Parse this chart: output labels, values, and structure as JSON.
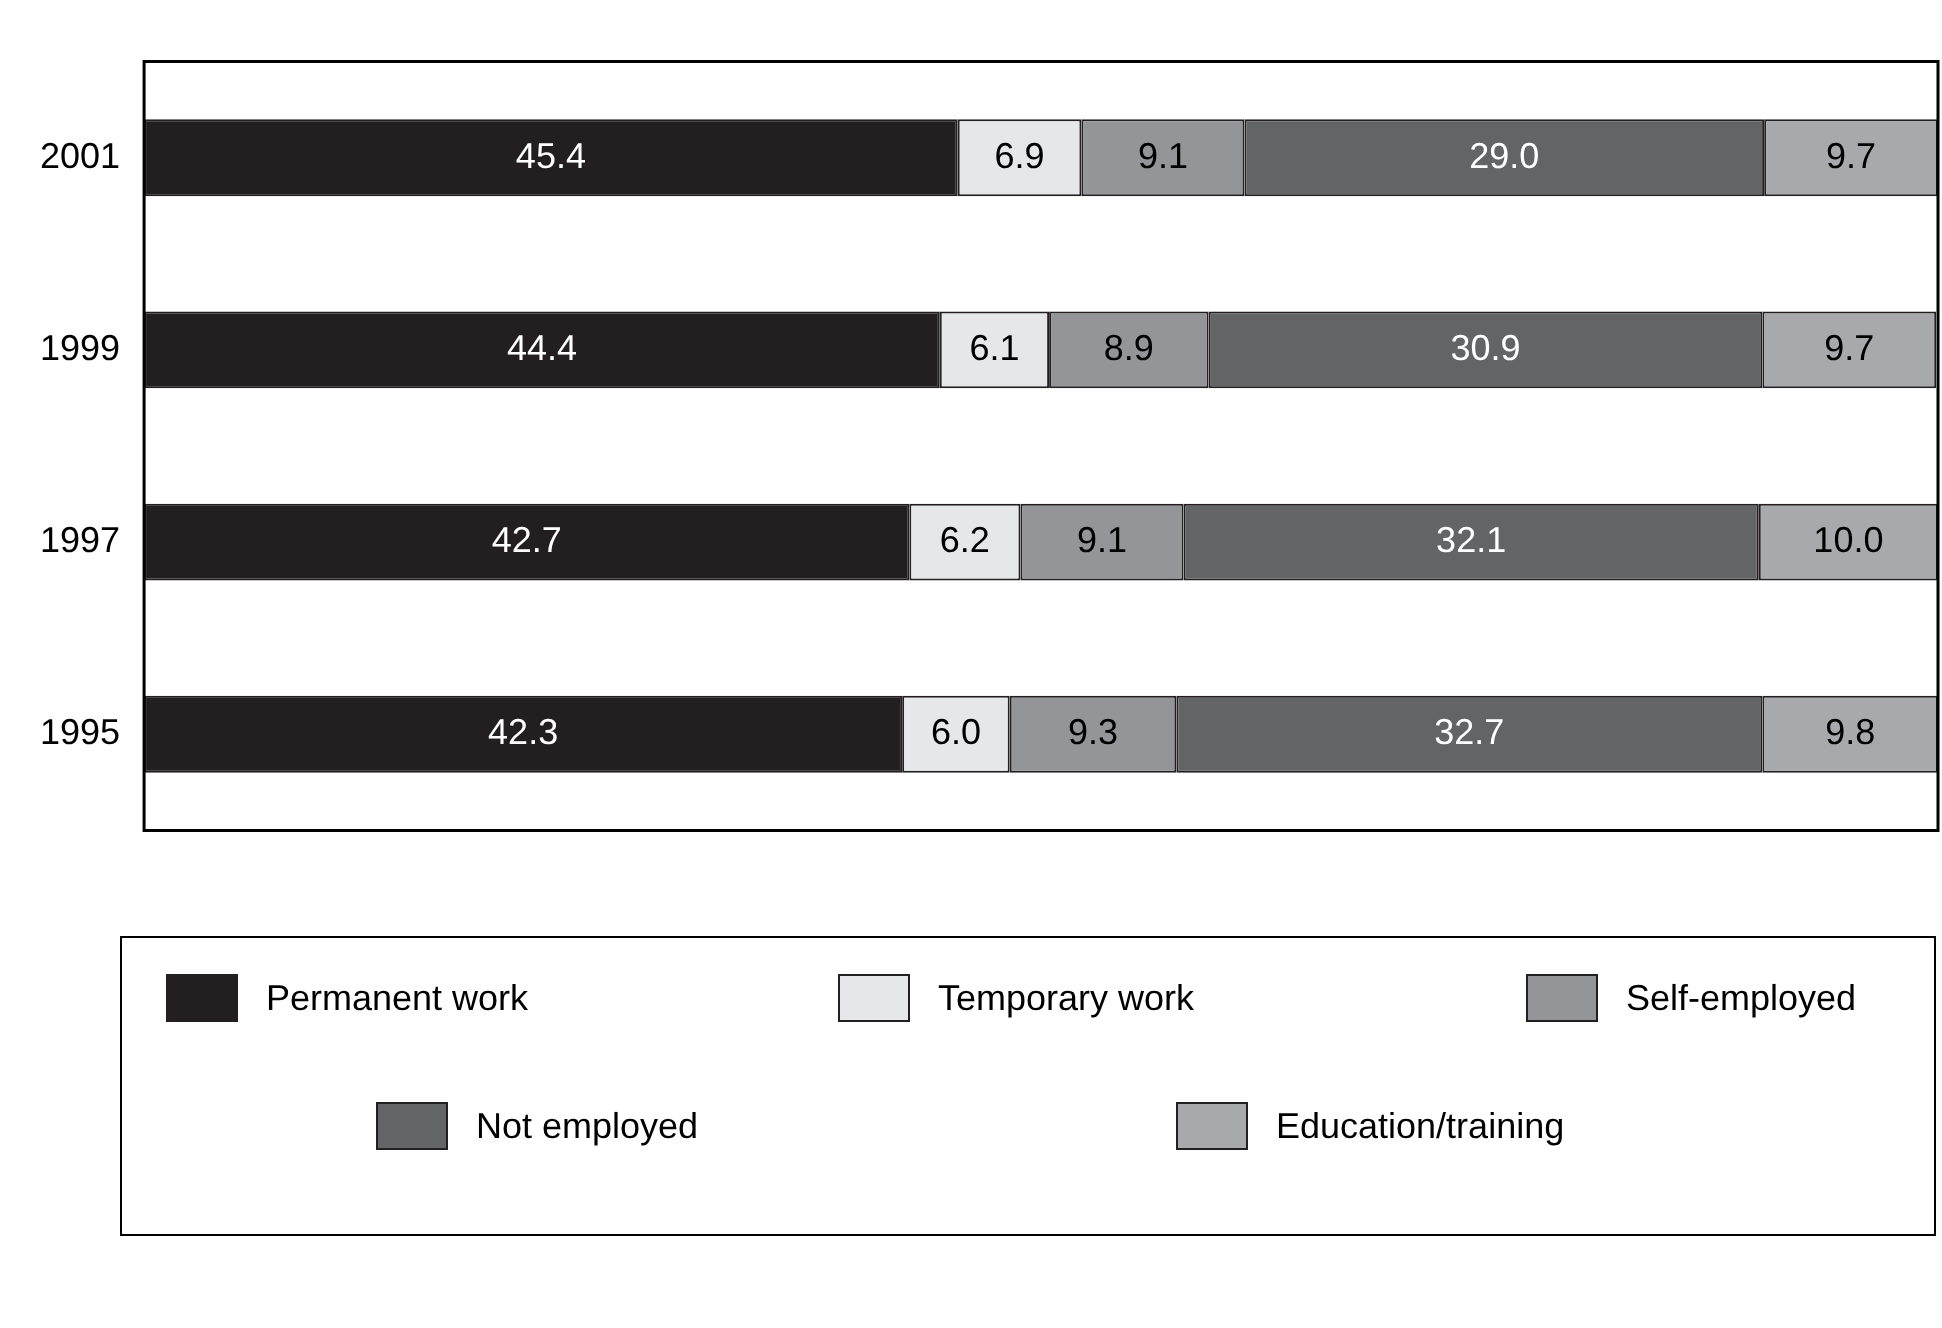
{
  "chart_data": {
    "type": "bar",
    "orientation": "horizontal",
    "stacked": true,
    "tick_labels": "y",
    "grid": false,
    "legend": "bottom",
    "categories": [
      "2001",
      "1999",
      "1997",
      "1995"
    ],
    "series": [
      {
        "name": "Permanent work",
        "color": "#231f20",
        "values": [
          45.4,
          44.4,
          42.7,
          42.3
        ],
        "value_labels": [
          "45.4",
          "44.4",
          "42.7",
          "42.3"
        ]
      },
      {
        "name": "Temporary work",
        "color": "#e6e7e8",
        "values": [
          6.9,
          6.1,
          6.2,
          6.0
        ],
        "value_labels": [
          "6.9",
          "6.1",
          "6.2",
          "6.0"
        ]
      },
      {
        "name": "Self-employed",
        "color": "#939598",
        "values": [
          9.1,
          8.9,
          9.1,
          9.3
        ],
        "value_labels": [
          "9.1",
          "8.9",
          "9.1",
          "9.3"
        ]
      },
      {
        "name": "Not employed",
        "color": "#636466",
        "values": [
          29.0,
          30.9,
          32.1,
          32.7
        ],
        "value_labels": [
          "29.0",
          "30.9",
          "32.1",
          "32.7"
        ]
      },
      {
        "name": "Education/training",
        "color": "#a7a9ac",
        "values": [
          9.7,
          9.7,
          10.0,
          9.8
        ],
        "value_labels": [
          "9.7",
          "9.7",
          "10.0",
          "9.8"
        ]
      }
    ]
  }
}
